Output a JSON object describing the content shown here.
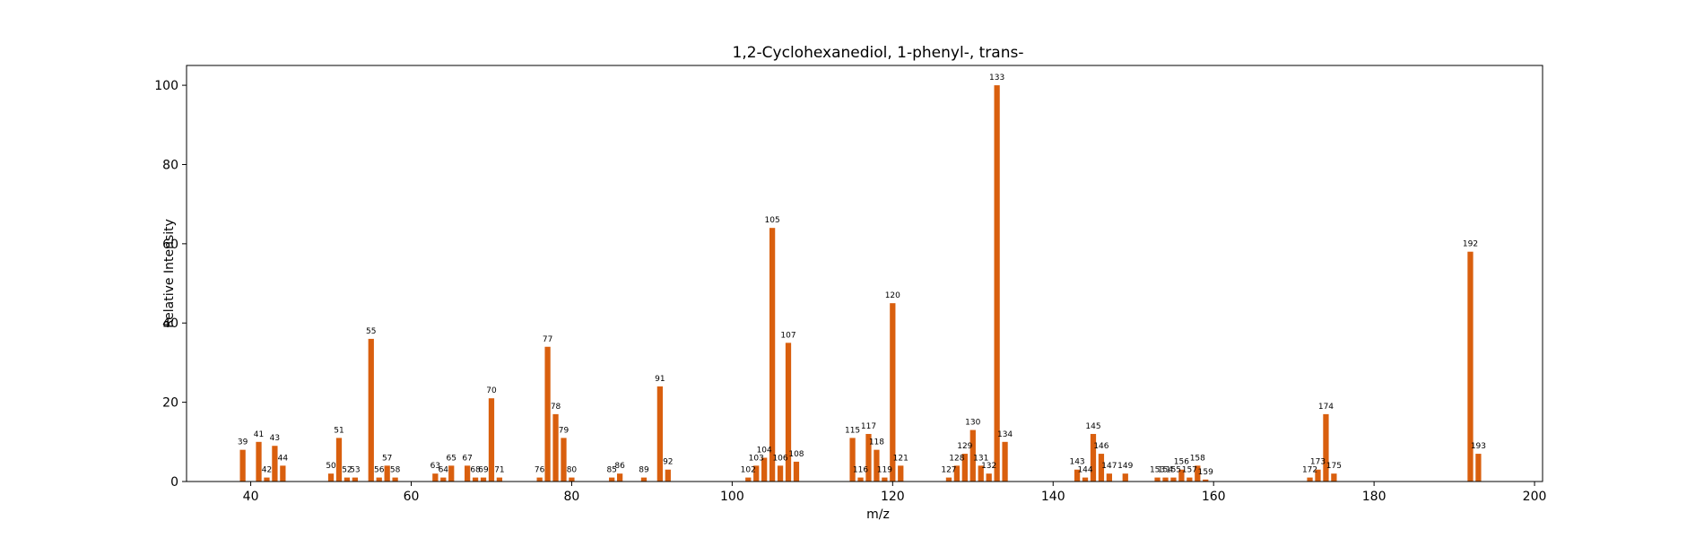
{
  "chart_data": {
    "type": "bar",
    "title": "1,2-Cyclohexanediol, 1-phenyl-, trans-",
    "xlabel": "m/z",
    "ylabel": "Relative Intensity",
    "xlim": [
      32,
      201
    ],
    "ylim": [
      0,
      105
    ],
    "xticks": [
      40,
      60,
      80,
      100,
      120,
      140,
      160,
      180,
      200
    ],
    "yticks": [
      0,
      20,
      40,
      60,
      80,
      100
    ],
    "grid": false,
    "bar_color": "#d95f0e",
    "x": [
      39,
      41,
      42,
      43,
      44,
      50,
      51,
      52,
      53,
      55,
      56,
      57,
      58,
      63,
      64,
      65,
      67,
      68,
      69,
      70,
      71,
      76,
      77,
      78,
      79,
      80,
      85,
      86,
      89,
      91,
      92,
      102,
      103,
      104,
      105,
      106,
      107,
      108,
      115,
      116,
      117,
      118,
      119,
      120,
      121,
      127,
      128,
      129,
      130,
      131,
      132,
      133,
      134,
      143,
      144,
      145,
      146,
      147,
      149,
      153,
      154,
      155,
      156,
      157,
      158,
      159,
      172,
      173,
      174,
      175,
      192,
      193
    ],
    "values": [
      8,
      10,
      1,
      9,
      4,
      2,
      11,
      1,
      1,
      36,
      1,
      4,
      1,
      2,
      1,
      4,
      4,
      1,
      1,
      21,
      1,
      1,
      34,
      17,
      11,
      1,
      1,
      2,
      1,
      24,
      3,
      1,
      4,
      6,
      64,
      4,
      35,
      5,
      11,
      1,
      12,
      8,
      1,
      45,
      4,
      1,
      4,
      7,
      13,
      4,
      2,
      100,
      10,
      3,
      1,
      12,
      7,
      2,
      2,
      1,
      1,
      1,
      3,
      1,
      4,
      0.5,
      1,
      3,
      17,
      2,
      58,
      7
    ],
    "labels": [
      "39",
      "41",
      "42",
      "43",
      "44",
      "50",
      "51",
      "52",
      "53",
      "55",
      "56",
      "57",
      "58",
      "63",
      "64",
      "65",
      "67",
      "68",
      "69",
      "70",
      "71",
      "76",
      "77",
      "78",
      "79",
      "80",
      "85",
      "86",
      "89",
      "91",
      "92",
      "102",
      "103",
      "104",
      "105",
      "106",
      "107",
      "108",
      "115",
      "116",
      "117",
      "118",
      "119",
      "120",
      "121",
      "127",
      "128",
      "129",
      "130",
      "131",
      "132",
      "133",
      "134",
      "143",
      "144",
      "145",
      "146",
      "147",
      "149",
      "153",
      "154",
      "155",
      "156",
      "157",
      "158",
      "159",
      "172",
      "173",
      "174",
      "175",
      "192",
      "193"
    ]
  }
}
